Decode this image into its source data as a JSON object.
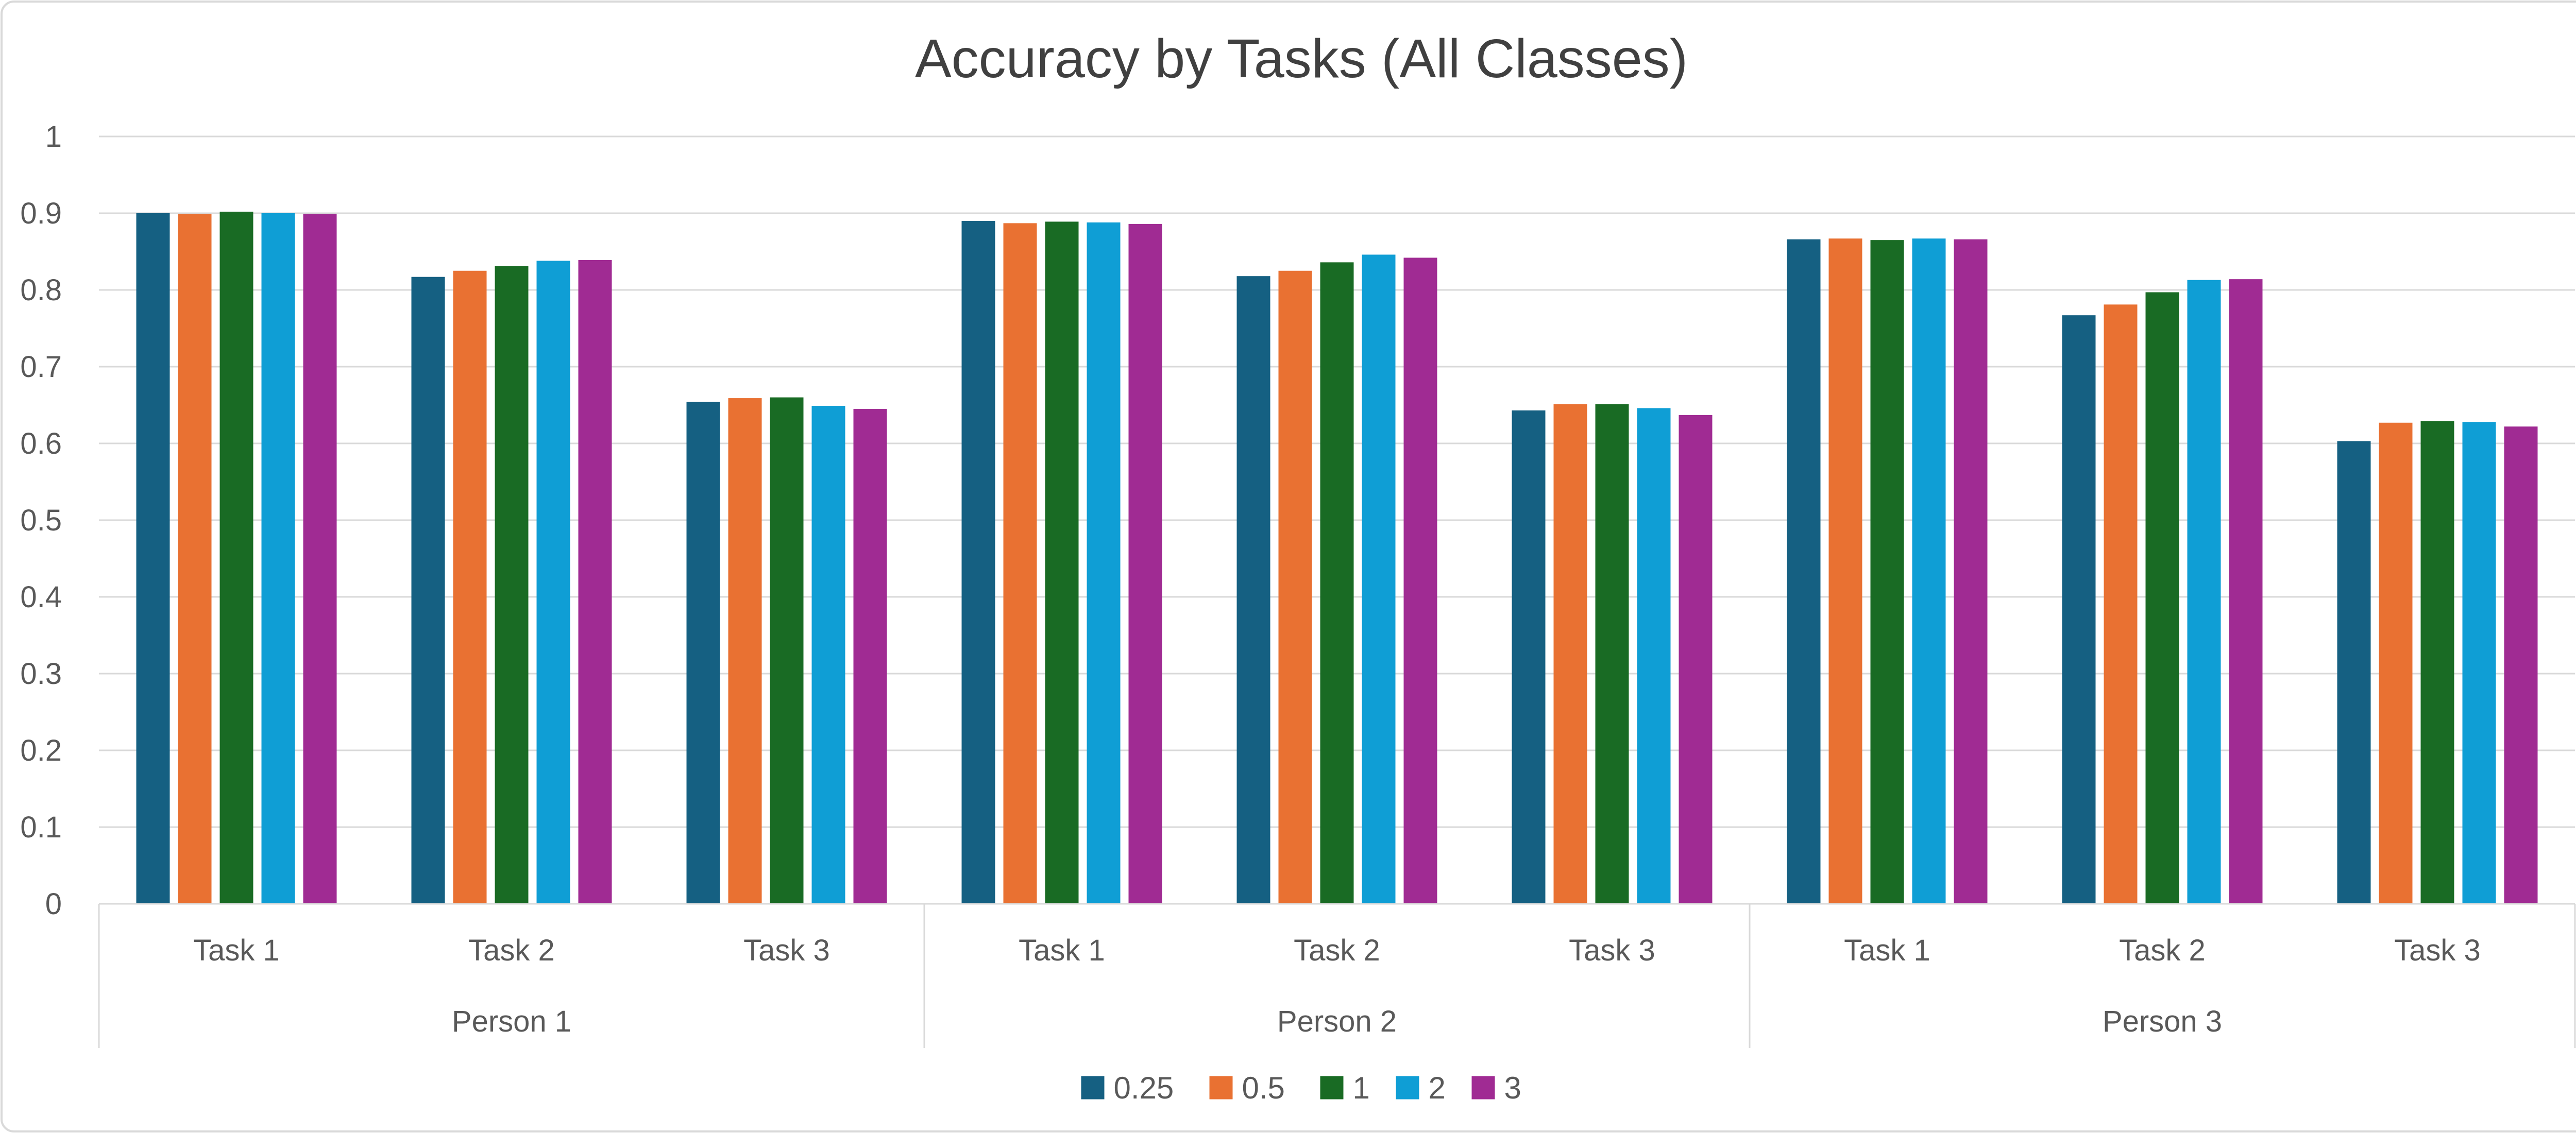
{
  "chart_data": {
    "type": "bar",
    "title": "Accuracy by Tasks (All Classes)",
    "xlabel": "",
    "ylabel": "",
    "ylim": [
      0,
      1
    ],
    "yticks": [
      "0",
      "0.1",
      "0.2",
      "0.3",
      "0.4",
      "0.5",
      "0.6",
      "0.7",
      "0.8",
      "0.9",
      "1"
    ],
    "grid": true,
    "legend_position": "bottom",
    "groups": [
      "Person 1",
      "Person 2",
      "Person 3"
    ],
    "categories": [
      "Task 1",
      "Task 2",
      "Task 3",
      "Task 1",
      "Task 2",
      "Task 3",
      "Task 1",
      "Task 2",
      "Task 3"
    ],
    "series": [
      {
        "name": "0.25",
        "color": "#156082",
        "values": [
          0.9,
          0.817,
          0.654,
          0.89,
          0.818,
          0.643,
          0.866,
          0.767,
          0.603
        ]
      },
      {
        "name": "0.5",
        "color": "#E97132",
        "values": [
          0.899,
          0.825,
          0.659,
          0.887,
          0.825,
          0.651,
          0.867,
          0.781,
          0.627
        ]
      },
      {
        "name": "1",
        "color": "#196B24",
        "values": [
          0.902,
          0.831,
          0.66,
          0.889,
          0.836,
          0.651,
          0.865,
          0.797,
          0.629
        ]
      },
      {
        "name": "2",
        "color": "#0F9ED5",
        "values": [
          0.9,
          0.838,
          0.649,
          0.888,
          0.846,
          0.646,
          0.867,
          0.813,
          0.628
        ]
      },
      {
        "name": "3",
        "color": "#A02B93",
        "values": [
          0.899,
          0.839,
          0.645,
          0.886,
          0.842,
          0.637,
          0.866,
          0.814,
          0.622
        ]
      }
    ]
  }
}
